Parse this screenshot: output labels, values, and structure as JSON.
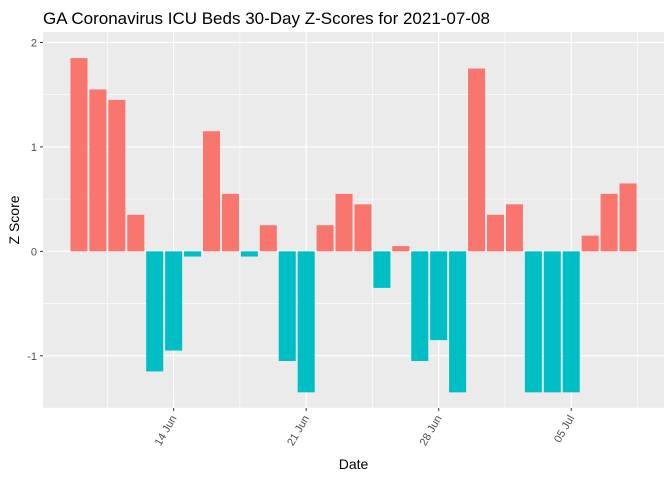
{
  "chart_data": {
    "type": "bar",
    "title": "GA Coronavirus ICU Beds 30-Day Z-Scores for 2021-07-08",
    "xlabel": "Date",
    "ylabel": "Z Score",
    "x": [
      "2021-06-09",
      "2021-06-10",
      "2021-06-11",
      "2021-06-12",
      "2021-06-13",
      "2021-06-14",
      "2021-06-15",
      "2021-06-16",
      "2021-06-17",
      "2021-06-18",
      "2021-06-19",
      "2021-06-20",
      "2021-06-21",
      "2021-06-22",
      "2021-06-23",
      "2021-06-24",
      "2021-06-25",
      "2021-06-26",
      "2021-06-27",
      "2021-06-28",
      "2021-06-29",
      "2021-06-30",
      "2021-07-01",
      "2021-07-02",
      "2021-07-03",
      "2021-07-04",
      "2021-07-05",
      "2021-07-06",
      "2021-07-07",
      "2021-07-08"
    ],
    "values": [
      1.85,
      1.55,
      1.45,
      0.35,
      -1.15,
      -0.95,
      -0.05,
      1.15,
      0.55,
      -0.05,
      0.25,
      -1.05,
      -1.35,
      0.25,
      0.55,
      0.45,
      -0.35,
      0.05,
      -1.05,
      -0.85,
      -1.35,
      1.75,
      0.35,
      0.45,
      -1.35,
      -1.35,
      -1.35,
      0.15,
      0.55,
      0.65
    ],
    "ylim": [
      -1.5,
      2.1
    ],
    "yticks": [
      -1,
      0,
      1,
      2
    ],
    "ytick_labels": [
      "-1",
      "0",
      "1",
      "2"
    ],
    "xticks": [
      "2021-06-14",
      "2021-06-21",
      "2021-06-28",
      "2021-07-05"
    ],
    "xtick_labels": [
      "14 Jun",
      "21 Jun",
      "28 Jun",
      "05 Jul"
    ],
    "positive_color": "#F8766D",
    "negative_color": "#00BFC4",
    "panel_background": "#EBEBEB",
    "grid": true,
    "legend": "none"
  }
}
